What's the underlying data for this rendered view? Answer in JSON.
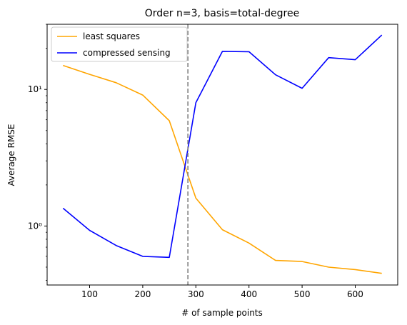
{
  "chart_data": {
    "type": "line",
    "title": "Order n=3, basis=total-degree",
    "xlabel": "# of sample points",
    "ylabel": "Average RMSE",
    "xlim": [
      20,
      680
    ],
    "ylim": [
      0.37,
      30
    ],
    "yscale": "log",
    "xticks": [
      100,
      200,
      300,
      400,
      500,
      600
    ],
    "yticks": [
      {
        "value": 1,
        "label": "10⁰"
      },
      {
        "value": 10,
        "label": "10¹"
      }
    ],
    "vline": {
      "x": 285,
      "color": "#808080",
      "style": "dashed"
    },
    "legend": {
      "position": "top-left"
    },
    "grid": false,
    "series": [
      {
        "name": "least squares",
        "color": "#ffa500",
        "x": [
          50,
          100,
          150,
          200,
          250,
          300,
          350,
          400,
          450,
          500,
          550,
          600,
          650
        ],
        "values": [
          15.0,
          12.9,
          11.2,
          9.1,
          5.9,
          1.6,
          0.94,
          0.75,
          0.56,
          0.55,
          0.5,
          0.48,
          0.45
        ]
      },
      {
        "name": "compressed sensing",
        "color": "#0000ff",
        "x": [
          50,
          100,
          150,
          200,
          250,
          300,
          350,
          400,
          450,
          500,
          550,
          600,
          650
        ],
        "values": [
          1.35,
          0.93,
          0.72,
          0.6,
          0.59,
          8.0,
          19.0,
          18.9,
          12.8,
          10.2,
          17.1,
          16.5,
          25.0
        ]
      }
    ]
  }
}
